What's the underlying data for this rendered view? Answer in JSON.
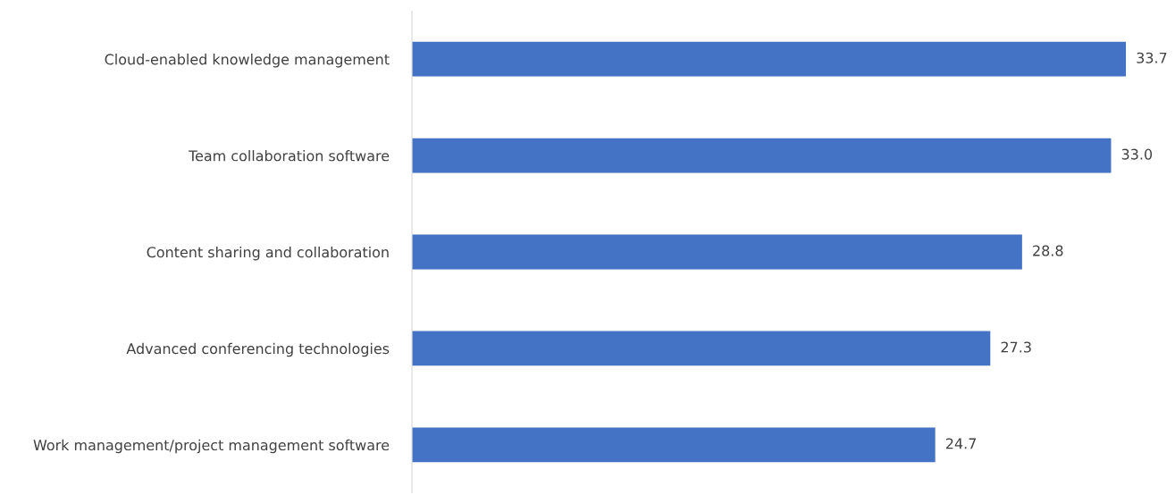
{
  "chart_data": {
    "type": "bar",
    "orientation": "horizontal",
    "categories": [
      "Cloud-enabled knowledge management",
      "Team collaboration software",
      "Content sharing and collaboration",
      "Advanced conferencing technologies",
      "Work management/project management software"
    ],
    "values": [
      33.7,
      33.0,
      28.8,
      27.3,
      24.7
    ],
    "value_labels": [
      "33.7",
      "33.0",
      "28.8",
      "27.3",
      "24.7"
    ],
    "color": "#4472c4",
    "grid": false,
    "legend": false
  }
}
